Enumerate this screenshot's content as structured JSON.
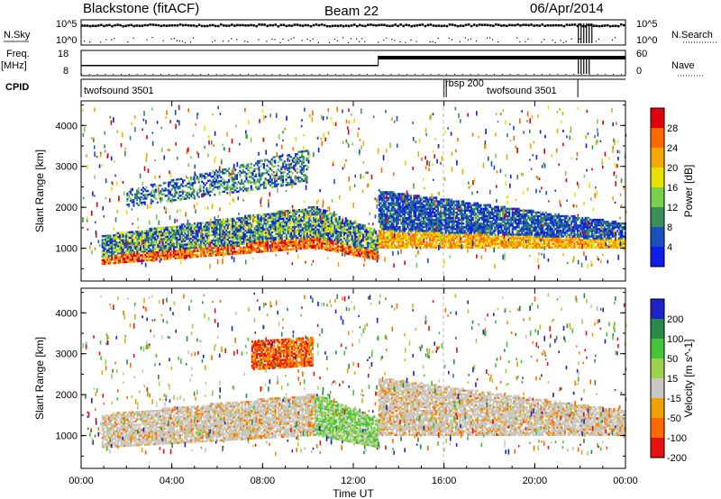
{
  "header": {
    "station": "Blackstone (fitACF)",
    "beam": "Beam 22",
    "date": "06/Apr/2014"
  },
  "top_strip": {
    "nsky_label": "N.Sky",
    "nsearch_label": "N.Search",
    "freq_label": "Freq.",
    "freq_unit": "[MHz]",
    "nave_label": "Nave",
    "cpid_label": "CPID",
    "left_ticks_top": [
      "10^5",
      "10^0"
    ],
    "right_ticks_top": [
      "10^5",
      "10^0"
    ],
    "freq_ticks": [
      "18",
      "8"
    ],
    "nave_ticks": [
      "60",
      "0"
    ],
    "cpid_blocks": [
      {
        "label": "twofsound 3501",
        "start_h": 0,
        "end_h": 16
      },
      {
        "label": "rbsp 200",
        "start_h": 16,
        "end_h": 16.1
      },
      {
        "label": "twofsound 3501",
        "start_h": 16.1,
        "end_h": 22
      }
    ]
  },
  "chart_data": [
    {
      "type": "heatmap",
      "panel": "power",
      "ylabel": "Slant Range [km]",
      "xlabel": "Time UT",
      "xlim_hours": [
        0,
        24
      ],
      "ylim": [
        200,
        4600
      ],
      "y_ticks": [
        1000,
        2000,
        3000,
        4000
      ],
      "colorbar": {
        "label": "Power [dB]",
        "ticks": [
          "28",
          "24",
          "20",
          "16",
          "12",
          "8",
          "4"
        ],
        "colors": [
          "#e2000e",
          "#ff6a00",
          "#f5a800",
          "#e8e000",
          "#79d04a",
          "#3a8f5a",
          "#1a4fbf",
          "#0d1ce6"
        ]
      },
      "echo_bands": [
        {
          "t0": 0.9,
          "t1": 10.3,
          "r0_start": 600,
          "r1_start": 1300,
          "r0_end": 1000,
          "r1_end": 2000,
          "level": "high"
        },
        {
          "t0": 10.3,
          "t1": 13.1,
          "r0_start": 1000,
          "r1_start": 2000,
          "r0_end": 700,
          "r1_end": 1400,
          "level": "high"
        },
        {
          "t0": 13.1,
          "t1": 24,
          "r0_start": 1000,
          "r1_start": 2400,
          "r0_end": 1000,
          "r1_end": 1600,
          "level": "mid"
        },
        {
          "t0": 2.0,
          "t1": 10.0,
          "r0_start": 2000,
          "r1_start": 2400,
          "r0_end": 2600,
          "r1_end": 3400,
          "level": "low"
        }
      ]
    },
    {
      "type": "heatmap",
      "panel": "velocity",
      "ylabel": "Slant Range [km]",
      "xlabel": "Time UT",
      "xlim_hours": [
        0,
        24
      ],
      "ylim": [
        200,
        4600
      ],
      "y_ticks": [
        1000,
        2000,
        3000,
        4000
      ],
      "colorbar": {
        "label": "Velocity [m s^-1]",
        "ticks": [
          "200",
          "100",
          "50",
          "15",
          "-15",
          "-50",
          "-100",
          "-200"
        ],
        "colors": [
          "#1a22c8",
          "#2a8a4a",
          "#45c43a",
          "#9ad24a",
          "#c8c8c0",
          "#f0a000",
          "#ff6a00",
          "#e81010"
        ]
      },
      "echo_bands": [
        {
          "t0": 0.9,
          "t1": 10.3,
          "r0_start": 700,
          "r1_start": 1500,
          "r0_end": 1000,
          "r1_end": 2000,
          "level": "zero"
        },
        {
          "t0": 10.3,
          "t1": 13.1,
          "r0_start": 1000,
          "r1_start": 2000,
          "r0_end": 700,
          "r1_end": 1400,
          "level": "pos"
        },
        {
          "t0": 13.1,
          "t1": 24,
          "r0_start": 1000,
          "r1_start": 2400,
          "r0_end": 1000,
          "r1_end": 1600,
          "level": "zero"
        },
        {
          "t0": 7.5,
          "t1": 10.2,
          "r0_start": 2600,
          "r1_start": 3300,
          "r0_end": 2700,
          "r1_end": 3400,
          "level": "neg"
        }
      ]
    }
  ],
  "x_axis": {
    "ticks": [
      "00:00",
      "04:00",
      "08:00",
      "12:00",
      "16:00",
      "20:00",
      "00:00"
    ],
    "label": "Time UT"
  }
}
